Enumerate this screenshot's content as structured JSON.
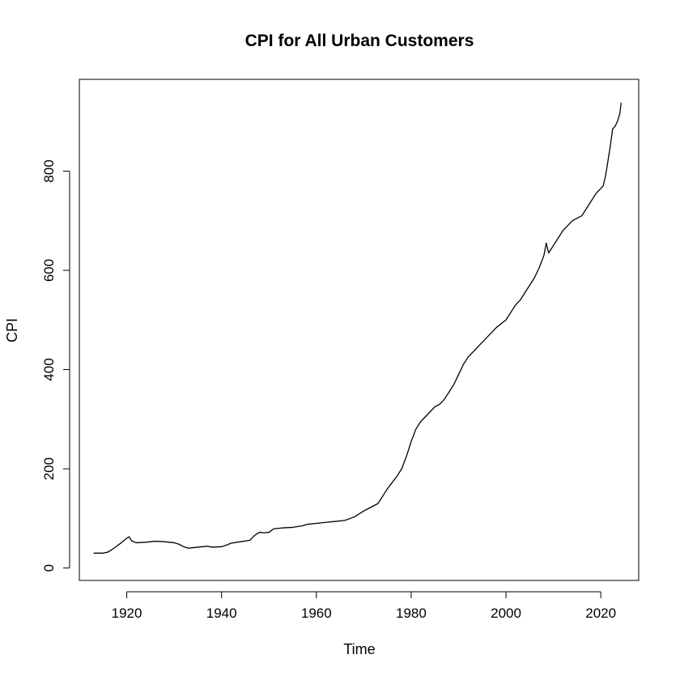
{
  "chart_data": {
    "type": "line",
    "title": "CPI for All Urban Customers",
    "xlabel": "Time",
    "ylabel": "CPI",
    "xlim": [
      1910,
      2028
    ],
    "ylim": [
      -25,
      985
    ],
    "x_ticks": [
      1920,
      1940,
      1960,
      1980,
      2000,
      2020
    ],
    "y_ticks": [
      0,
      200,
      400,
      600,
      800
    ],
    "grid": false,
    "series": [
      {
        "x": [
          1913,
          1915,
          1916,
          1917,
          1918,
          1919,
          1920,
          1920.5,
          1921,
          1922,
          1924,
          1926,
          1928,
          1930,
          1931,
          1932,
          1933,
          1934,
          1936,
          1937,
          1938,
          1940,
          1941,
          1942,
          1944,
          1946,
          1947,
          1948,
          1949,
          1950,
          1951,
          1953,
          1955,
          1957,
          1958,
          1960,
          1962,
          1964,
          1966,
          1968,
          1970,
          1971,
          1973,
          1974,
          1975,
          1977,
          1978,
          1979,
          1980,
          1981,
          1982,
          1983,
          1984,
          1985,
          1986,
          1987,
          1988,
          1989,
          1990,
          1991,
          1992,
          1993,
          1995,
          1997,
          1998,
          2000,
          2001,
          2002,
          2003,
          2004,
          2005,
          2006,
          2007,
          2008,
          2008.5,
          2009,
          2010,
          2011,
          2012,
          2013,
          2014,
          2015,
          2016,
          2017,
          2018,
          2019,
          2020,
          2020.5,
          2021,
          2021.5,
          2022,
          2022.5,
          2023,
          2023.5,
          2024,
          2024.3
        ],
        "y": [
          30,
          30,
          32,
          38,
          45,
          52,
          60,
          63,
          55,
          51,
          52,
          54,
          53,
          51,
          48,
          43,
          40,
          41,
          43,
          44,
          42,
          43,
          46,
          50,
          53,
          56,
          66,
          72,
          71,
          72,
          79,
          81,
          82,
          85,
          88,
          90,
          92,
          94,
          96,
          103,
          115,
          120,
          130,
          145,
          160,
          185,
          200,
          225,
          255,
          280,
          295,
          305,
          315,
          325,
          330,
          340,
          355,
          370,
          390,
          410,
          425,
          435,
          455,
          475,
          485,
          500,
          515,
          530,
          540,
          555,
          570,
          585,
          605,
          630,
          655,
          635,
          650,
          665,
          680,
          690,
          700,
          705,
          710,
          725,
          740,
          755,
          765,
          770,
          790,
          820,
          850,
          885,
          890,
          900,
          915,
          938
        ]
      }
    ]
  }
}
